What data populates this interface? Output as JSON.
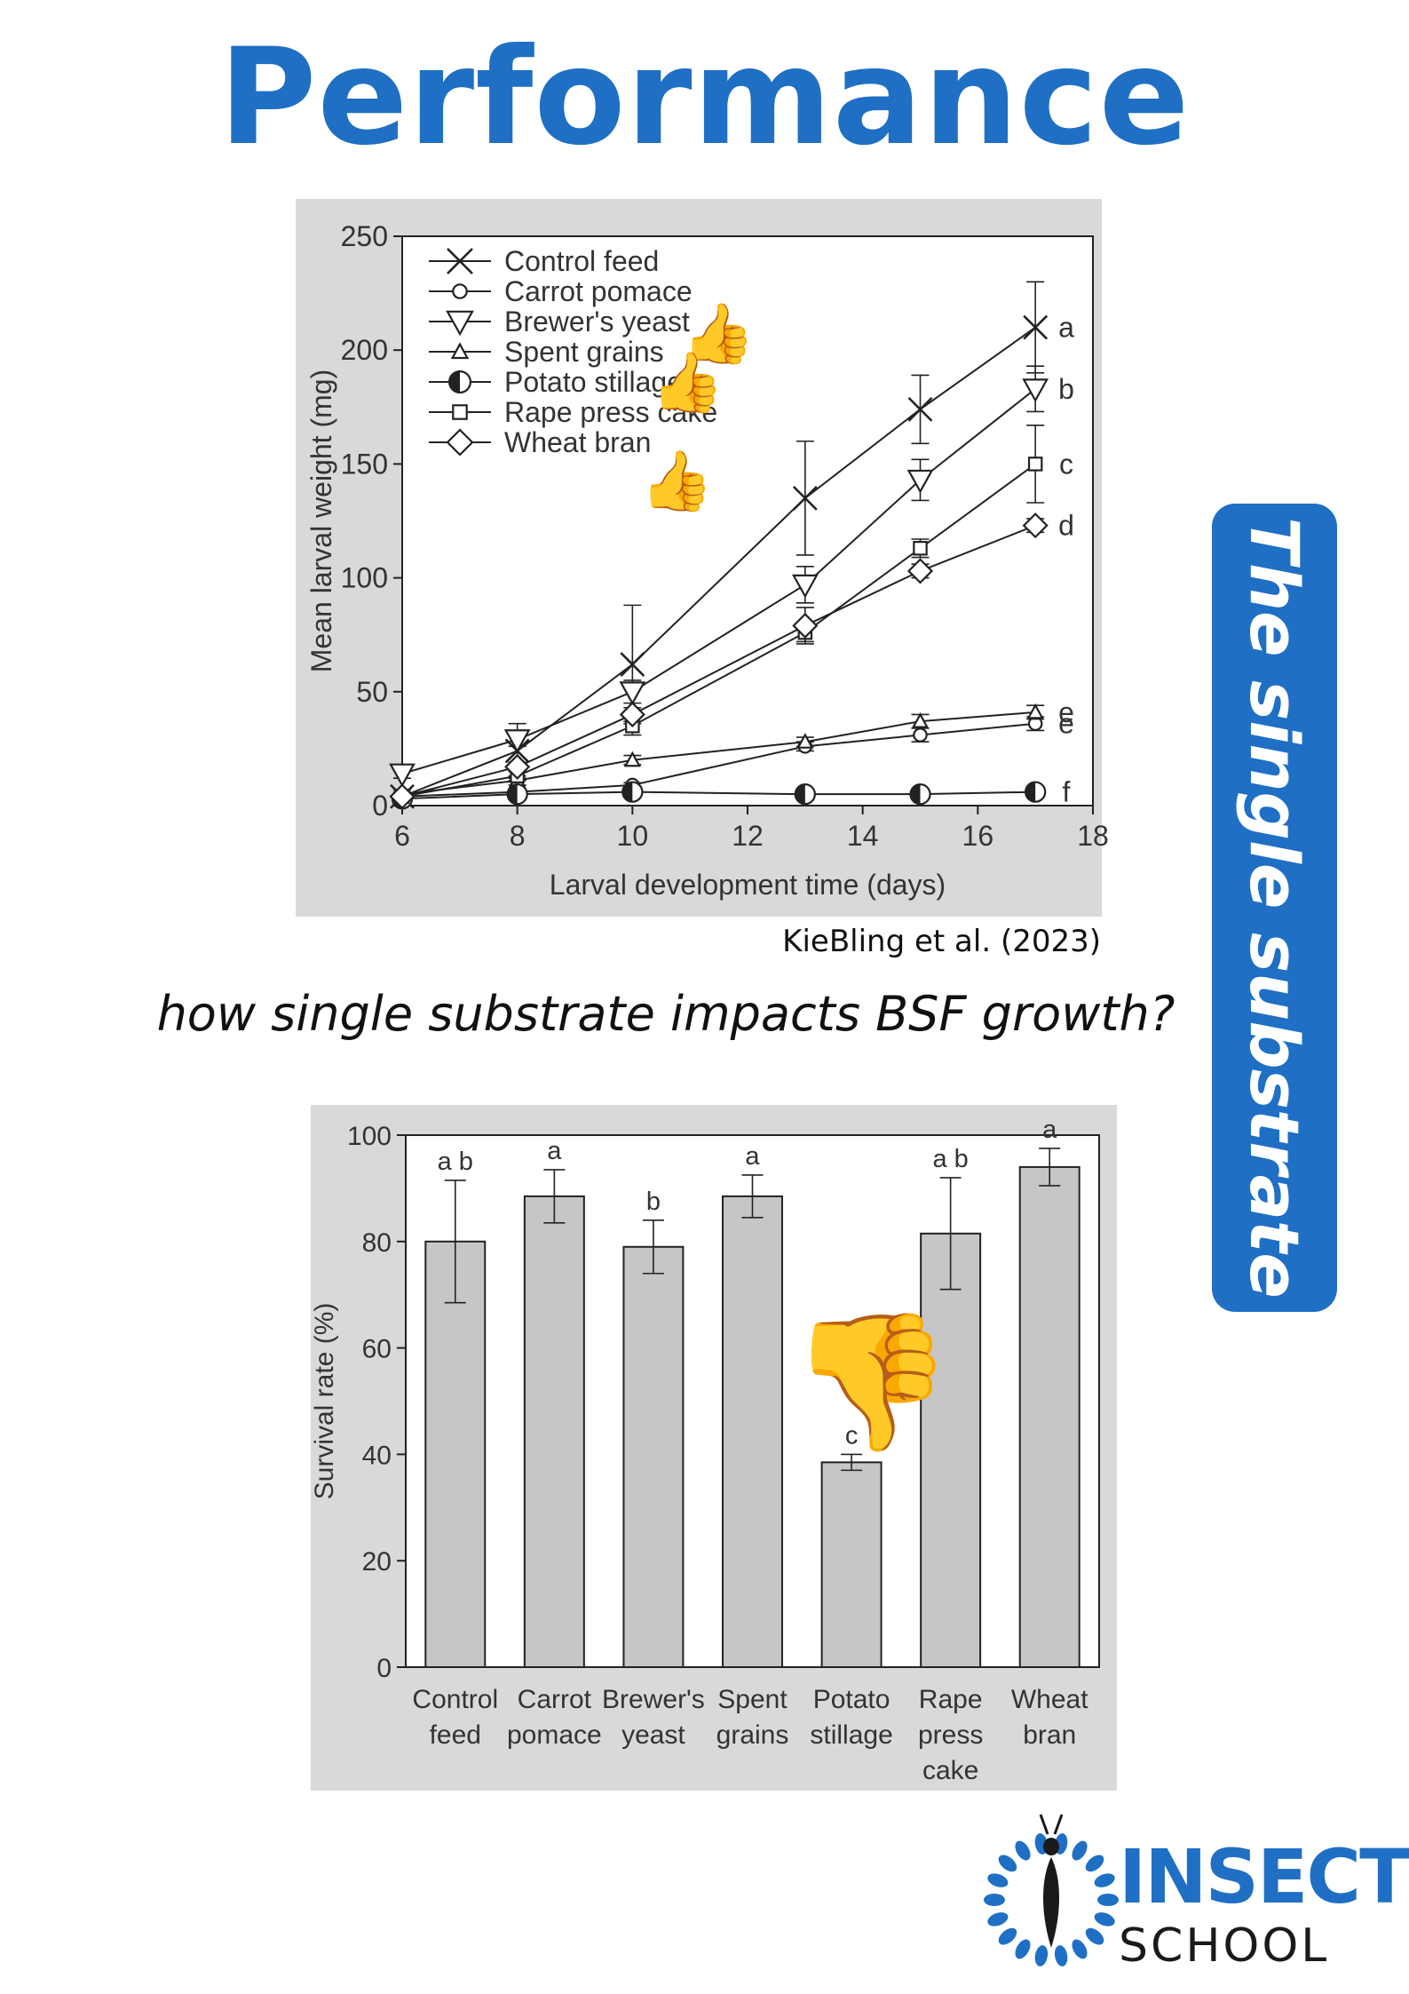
{
  "title": "Performance",
  "citation": "KieBling et al. (2023)",
  "question": "how single substrate impacts BSF growth?",
  "side_label": "The single substrate",
  "logo": {
    "word": "INSECT",
    "sub": "SCHOOL"
  },
  "icons": {
    "thumbs_up": "thumbs-up-icon",
    "thumbs_down": "thumbs-down-icon",
    "logo_mark": "insect-logo-icon"
  },
  "colors": {
    "brand_blue": "#1f6fc5",
    "panel_gray": "#d9d9d9",
    "bar_fill": "#c6c6c6"
  },
  "chart_data": [
    {
      "type": "line",
      "xlabel": "Larval development time (days)",
      "ylabel": "Mean larval weight (mg)",
      "xlim": [
        6,
        18
      ],
      "ylim": [
        0,
        250
      ],
      "xticks": [
        6,
        8,
        10,
        12,
        14,
        16,
        18
      ],
      "yticks": [
        0,
        50,
        100,
        150,
        200,
        250
      ],
      "legend_position": "top-left",
      "grid": false,
      "x": [
        6,
        8,
        10,
        13,
        15,
        17
      ],
      "series": [
        {
          "name": "Control feed",
          "marker": "x",
          "values": [
            4,
            24,
            62,
            135,
            174,
            210
          ],
          "errors": [
            3,
            12,
            26,
            25,
            15,
            20
          ],
          "group": "a"
        },
        {
          "name": "Carrot pomace",
          "marker": "circle",
          "values": [
            4,
            6,
            9,
            26,
            31,
            36
          ],
          "errors": [
            1,
            1,
            1,
            2,
            3,
            3
          ],
          "group": "e"
        },
        {
          "name": "Brewer's yeast",
          "marker": "triangle-down",
          "values": [
            14,
            29,
            50,
            97,
            143,
            183
          ],
          "errors": [
            2,
            3,
            5,
            8,
            9,
            10
          ],
          "group": "b"
        },
        {
          "name": "Spent grains",
          "marker": "triangle-up",
          "values": [
            5,
            11,
            20,
            28,
            37,
            41
          ],
          "errors": [
            1,
            2,
            2,
            2,
            3,
            3
          ],
          "group": "e"
        },
        {
          "name": "Potato stillage",
          "marker": "half-circle",
          "values": [
            3,
            5,
            6,
            5,
            5,
            6
          ],
          "errors": [
            1,
            1,
            1,
            1,
            1,
            1
          ],
          "group": "f"
        },
        {
          "name": "Rape press cake",
          "marker": "square",
          "values": [
            4,
            13,
            35,
            76,
            113,
            150
          ],
          "errors": [
            1,
            2,
            4,
            4,
            4,
            17
          ],
          "group": "c"
        },
        {
          "name": "Wheat bran",
          "marker": "diamond",
          "values": [
            4,
            17,
            40,
            79,
            103,
            123
          ],
          "errors": [
            1,
            2,
            3,
            8,
            3,
            3
          ],
          "group": "d"
        }
      ]
    },
    {
      "type": "bar",
      "ylabel": "Survival rate (%)",
      "ylim": [
        0,
        100
      ],
      "yticks": [
        0,
        20,
        40,
        60,
        80,
        100
      ],
      "categories": [
        [
          "Control",
          "feed"
        ],
        [
          "Carrot",
          "pomace"
        ],
        [
          "Brewer's",
          "yeast"
        ],
        [
          "Spent",
          "grains"
        ],
        [
          "Potato",
          "stillage"
        ],
        [
          "Rape",
          "press",
          "cake"
        ],
        [
          "Wheat",
          "bran"
        ]
      ],
      "values": [
        80,
        88.5,
        79,
        88.5,
        38.5,
        81.5,
        94
      ],
      "errors": [
        11.5,
        5,
        5,
        4,
        1.5,
        10.5,
        3.5
      ],
      "labels": [
        "a b",
        "a",
        "b",
        "a",
        "c",
        "a b",
        "a"
      ]
    }
  ]
}
